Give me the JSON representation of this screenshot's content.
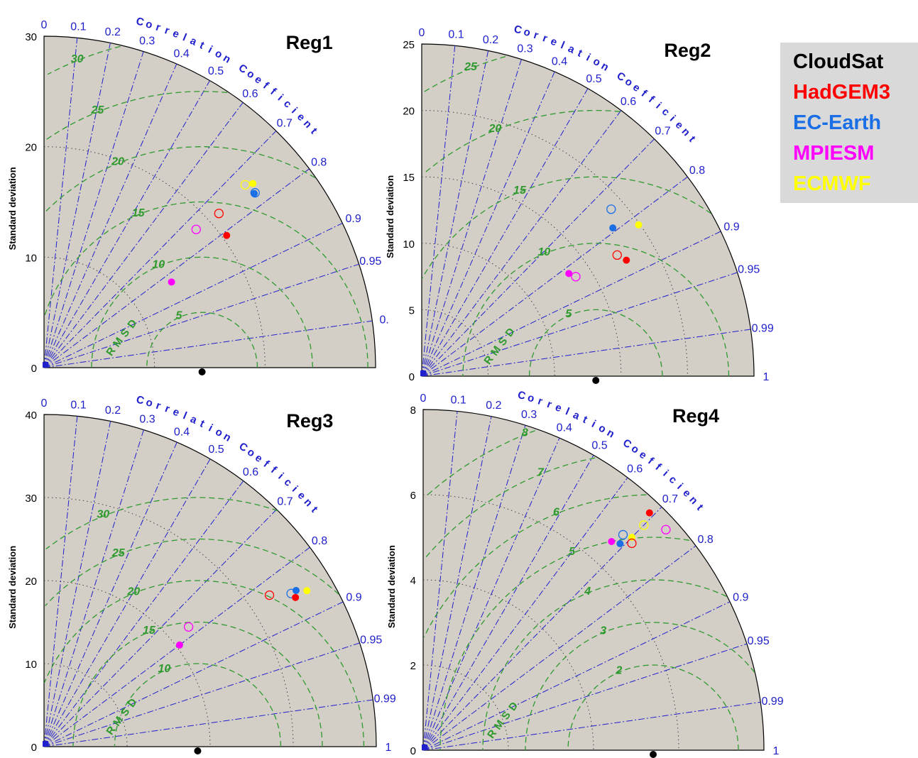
{
  "figure": {
    "legend": [
      {
        "label": "CloudSat",
        "color": "#000000"
      },
      {
        "label": "HadGEM3",
        "color": "#ff0000"
      },
      {
        "label": "EC-Earth",
        "color": "#1a6fe6"
      },
      {
        "label": "MPIESM",
        "color": "#ff00ff"
      },
      {
        "label": "ECMWF",
        "color": "#ffff00"
      }
    ],
    "legend_position": "right"
  },
  "colors": {
    "plot_background": "#d3cec6",
    "correlation_lines": "#2020cc",
    "rmsd_contours": "#2e9a2e",
    "std_arcs": "#444444",
    "CloudSat": "#000000",
    "HadGEM3": "#ff0000",
    "EC-Earth": "#1a6fe6",
    "MPIESM": "#ff00ff",
    "ECMWF": "#ffff00"
  },
  "chart_data": [
    {
      "type": "taylor",
      "title": "Reg1",
      "ylabel": "Standard deviation",
      "angular_label": "Correlation Coefficient",
      "rmsd_label": "RMSD",
      "std_ticks": [
        "0",
        "10",
        "20",
        "30"
      ],
      "std_max": 30,
      "corr_ticks": [
        "0",
        "0.1",
        "0.2",
        "0.3",
        "0.4",
        "0.5",
        "0.6",
        "0.7",
        "0.8",
        "0.9",
        "0.95",
        "0."
      ],
      "rmsd_labels": [
        "5",
        "10",
        "15",
        "20",
        "25",
        "30"
      ],
      "reference": {
        "name": "CloudSat",
        "std": 14.3
      },
      "points": [
        {
          "model": "EC-Earth",
          "filled": true,
          "corr": 0.77,
          "std": 24.7
        },
        {
          "model": "EC-Earth",
          "filled": false,
          "corr": 0.77,
          "std": 24.8
        },
        {
          "model": "ECMWF",
          "filled": true,
          "corr": 0.75,
          "std": 25.2
        },
        {
          "model": "ECMWF",
          "filled": false,
          "corr": 0.74,
          "std": 24.6
        },
        {
          "model": "HadGEM3",
          "filled": true,
          "corr": 0.81,
          "std": 20.4
        },
        {
          "model": "HadGEM3",
          "filled": false,
          "corr": 0.75,
          "std": 21.1
        },
        {
          "model": "MPIESM",
          "filled": true,
          "corr": 0.83,
          "std": 13.9
        },
        {
          "model": "MPIESM",
          "filled": false,
          "corr": 0.74,
          "std": 18.6
        }
      ]
    },
    {
      "type": "taylor",
      "title": "Reg2",
      "ylabel": "Standard deviation",
      "angular_label": "Correlation Coefficient",
      "rmsd_label": "RMSD",
      "std_ticks": [
        "0",
        "5",
        "10",
        "15",
        "20",
        "25"
      ],
      "std_max": 25,
      "corr_ticks": [
        "0",
        "0.1",
        "0.2",
        "0.3",
        "0.4",
        "0.5",
        "0.6",
        "0.7",
        "0.8",
        "0.9",
        "0.95",
        "0.99",
        "1"
      ],
      "rmsd_labels": [
        "5",
        "10",
        "15",
        "20",
        "25"
      ],
      "reference": {
        "name": "CloudSat",
        "std": 13.1
      },
      "points": [
        {
          "model": "EC-Earth",
          "filled": false,
          "corr": 0.75,
          "std": 19.0
        },
        {
          "model": "EC-Earth",
          "filled": true,
          "corr": 0.79,
          "std": 18.2
        },
        {
          "model": "ECMWF",
          "filled": true,
          "corr": 0.82,
          "std": 19.9
        },
        {
          "model": "HadGEM3",
          "filled": true,
          "corr": 0.87,
          "std": 17.7
        },
        {
          "model": "HadGEM3",
          "filled": false,
          "corr": 0.85,
          "std": 17.3
        },
        {
          "model": "MPIESM",
          "filled": true,
          "corr": 0.82,
          "std": 13.5
        },
        {
          "model": "MPIESM",
          "filled": false,
          "corr": 0.84,
          "std": 13.8
        }
      ]
    },
    {
      "type": "taylor",
      "title": "Reg3",
      "ylabel": "Standard deviation",
      "angular_label": "Correlation Coefficient",
      "rmsd_label": "RMSD",
      "std_ticks": [
        "0",
        "10",
        "20",
        "30",
        "40"
      ],
      "std_max": 40,
      "corr_ticks": [
        "0",
        "0.1",
        "0.2",
        "0.3",
        "0.4",
        "0.5",
        "0.6",
        "0.7",
        "0.8",
        "0.9",
        "0.95",
        "0.99",
        "1"
      ],
      "rmsd_labels": [
        "10",
        "15",
        "20",
        "25",
        "30"
      ],
      "reference": {
        "name": "CloudSat",
        "std": 18.5
      },
      "points": [
        {
          "model": "EC-Earth",
          "filled": true,
          "corr": 0.85,
          "std": 35.7
        },
        {
          "model": "EC-Earth",
          "filled": false,
          "corr": 0.85,
          "std": 35.0
        },
        {
          "model": "ECMWF",
          "filled": true,
          "corr": 0.86,
          "std": 36.8
        },
        {
          "model": "HadGEM3",
          "filled": true,
          "corr": 0.86,
          "std": 35.2
        },
        {
          "model": "HadGEM3",
          "filled": false,
          "corr": 0.83,
          "std": 32.7
        },
        {
          "model": "MPIESM",
          "filled": true,
          "corr": 0.8,
          "std": 20.4
        },
        {
          "model": "MPIESM",
          "filled": false,
          "corr": 0.77,
          "std": 22.6
        }
      ]
    },
    {
      "type": "taylor",
      "title": "Reg4",
      "ylabel": "Standard deviation",
      "angular_label": "Correlation Coefficient",
      "rmsd_label": "RMSD",
      "std_ticks": [
        "0",
        "2",
        "4",
        "6",
        "8"
      ],
      "std_max": 8,
      "corr_ticks": [
        "0",
        "0.1",
        "0.2",
        "0.3",
        "0.4",
        "0.5",
        "0.6",
        "0.7",
        "0.8",
        "0.9",
        "0.95",
        "0.99",
        "1"
      ],
      "rmsd_labels": [
        "2",
        "3",
        "4",
        "5",
        "6",
        "7",
        "8"
      ],
      "reference": {
        "name": "CloudSat",
        "std": 5.4
      },
      "points": [
        {
          "model": "HadGEM3",
          "filled": true,
          "corr": 0.69,
          "std": 7.7
        },
        {
          "model": "ECMWF",
          "filled": false,
          "corr": 0.7,
          "std": 7.4
        },
        {
          "model": "MPIESM",
          "filled": false,
          "corr": 0.74,
          "std": 7.7
        },
        {
          "model": "EC-Earth",
          "filled": false,
          "corr": 0.68,
          "std": 6.9
        },
        {
          "model": "ECMWF",
          "filled": true,
          "corr": 0.7,
          "std": 7.0
        },
        {
          "model": "HadGEM3",
          "filled": false,
          "corr": 0.71,
          "std": 6.9
        },
        {
          "model": "EC-Earth",
          "filled": true,
          "corr": 0.69,
          "std": 6.7
        },
        {
          "model": "MPIESM",
          "filled": true,
          "corr": 0.67,
          "std": 6.6
        }
      ]
    }
  ]
}
